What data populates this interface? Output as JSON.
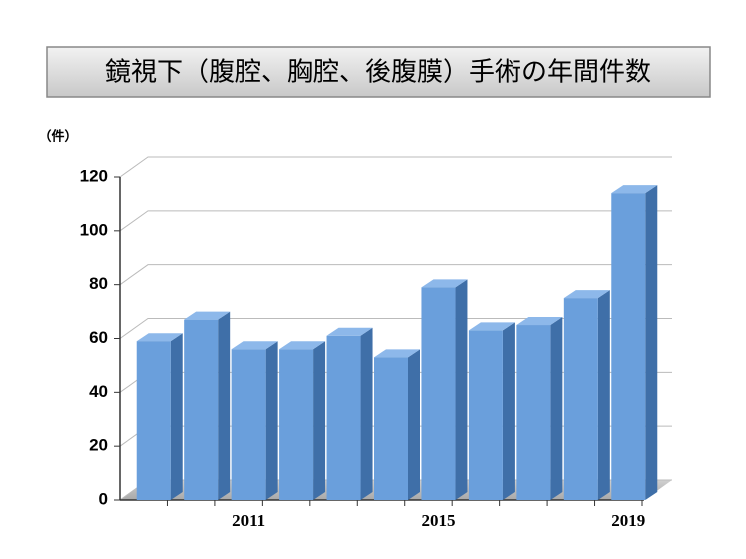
{
  "chart_data": {
    "type": "bar",
    "title": "鏡視下（腹腔、胸腔、後腹膜）手術の年間件数",
    "y_axis_label": "（件）",
    "categories": [
      null,
      null,
      "2011",
      null,
      null,
      null,
      "2015",
      null,
      null,
      null,
      "2019"
    ],
    "values": [
      59,
      67,
      56,
      56,
      61,
      53,
      79,
      63,
      65,
      75,
      114
    ],
    "color": "#6a9fdc",
    "ylim": [
      0,
      120
    ],
    "yticks": [
      0,
      20,
      40,
      60,
      80,
      100,
      120
    ],
    "grid": true
  }
}
